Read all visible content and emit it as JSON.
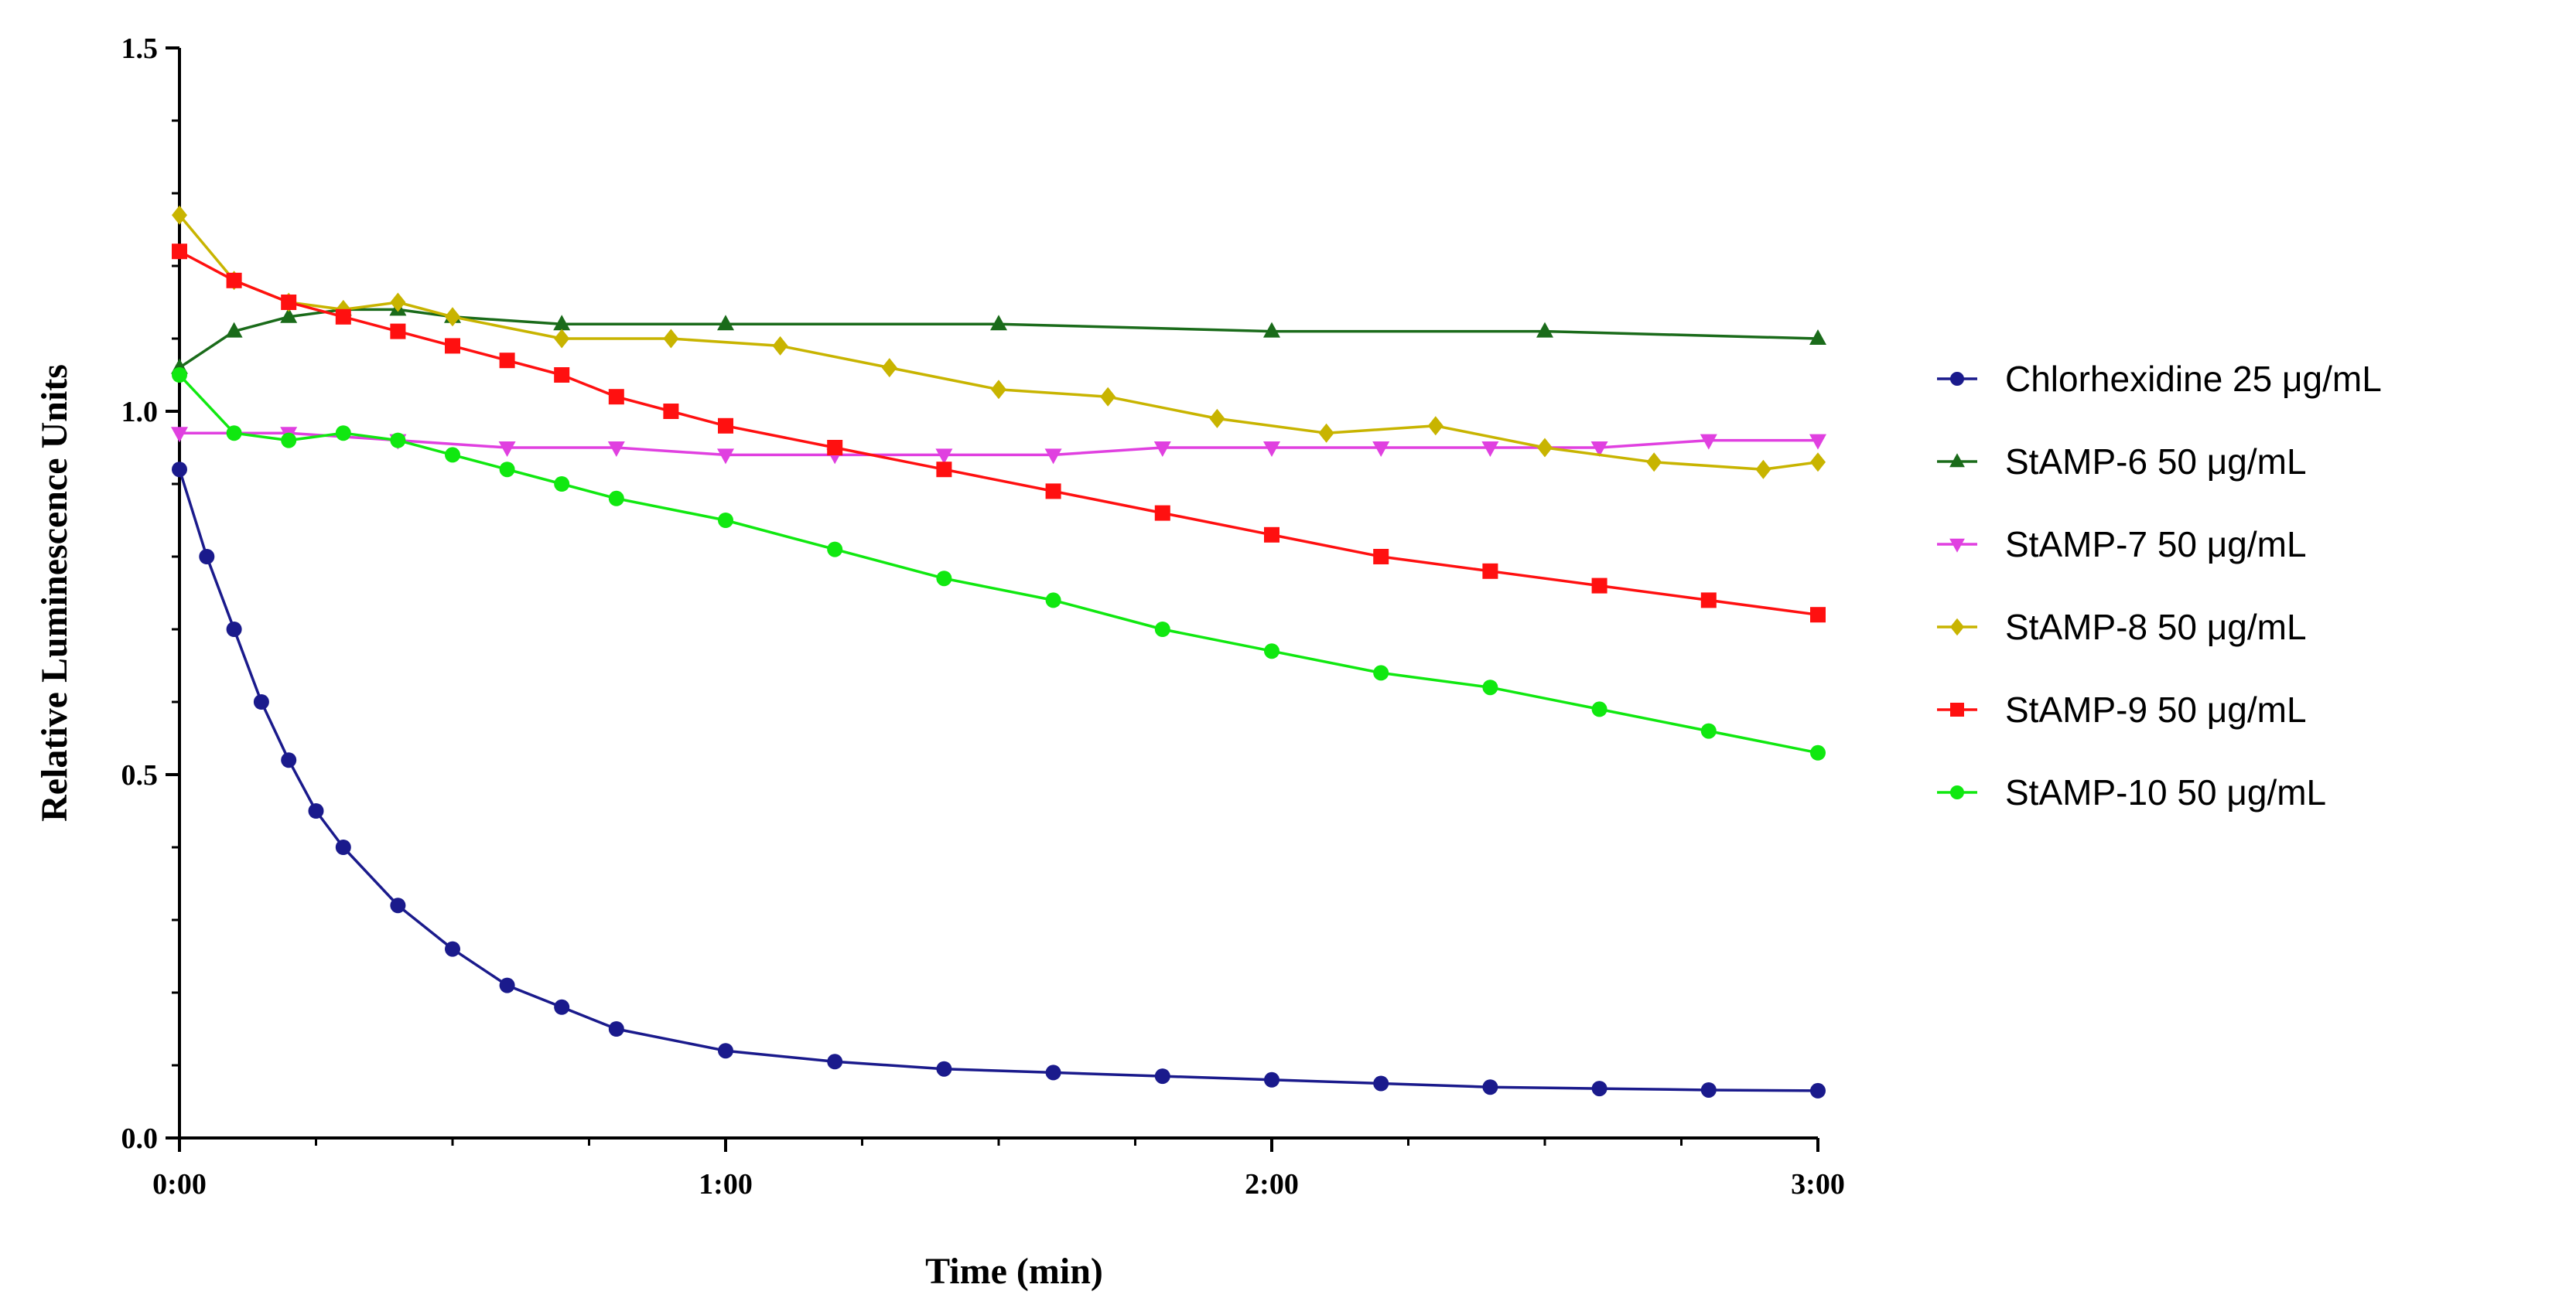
{
  "chart_data": {
    "type": "scatter",
    "title": "",
    "xlabel": "Time (min)",
    "ylabel": "Relative Luminescence Units",
    "xlim": [
      0,
      3
    ],
    "ylim": [
      0,
      1.5
    ],
    "x_ticks": [
      0,
      1,
      2,
      3
    ],
    "x_tick_labels": [
      "0:00",
      "1:00",
      "2:00",
      "3:00"
    ],
    "y_ticks": [
      0,
      0.5,
      1.0,
      1.5
    ],
    "y_tick_labels": [
      "0.0",
      "0.5",
      "1.0",
      "1.5"
    ],
    "grid": false,
    "legend_position": "right",
    "series": [
      {
        "name": "Chlorhexidine 25 μg/mL",
        "color": "#1a1a8c",
        "marker": "circle",
        "x": [
          0,
          0.05,
          0.1,
          0.15,
          0.2,
          0.25,
          0.3,
          0.4,
          0.5,
          0.6,
          0.7,
          0.8,
          1.0,
          1.2,
          1.4,
          1.6,
          1.8,
          2.0,
          2.2,
          2.4,
          2.6,
          2.8,
          3.0
        ],
        "y": [
          0.92,
          0.8,
          0.7,
          0.6,
          0.52,
          0.45,
          0.4,
          0.32,
          0.26,
          0.21,
          0.18,
          0.15,
          0.12,
          0.105,
          0.095,
          0.09,
          0.085,
          0.08,
          0.075,
          0.07,
          0.068,
          0.066,
          0.065
        ]
      },
      {
        "name": "StAMP-6 50 μg/mL",
        "color": "#1a6b1a",
        "marker": "triangle-up",
        "x": [
          0,
          0.1,
          0.2,
          0.3,
          0.4,
          0.5,
          0.7,
          1.0,
          1.5,
          2.0,
          2.5,
          3.0
        ],
        "y": [
          1.06,
          1.11,
          1.13,
          1.14,
          1.14,
          1.13,
          1.12,
          1.12,
          1.12,
          1.11,
          1.11,
          1.1
        ]
      },
      {
        "name": "StAMP-7 50 μg/mL",
        "color": "#e040e0",
        "marker": "triangle-down",
        "x": [
          0,
          0.2,
          0.4,
          0.6,
          0.8,
          1.0,
          1.2,
          1.4,
          1.6,
          1.8,
          2.0,
          2.2,
          2.4,
          2.6,
          2.8,
          3.0
        ],
        "y": [
          0.97,
          0.97,
          0.96,
          0.95,
          0.95,
          0.94,
          0.94,
          0.94,
          0.94,
          0.95,
          0.95,
          0.95,
          0.95,
          0.95,
          0.96,
          0.96
        ]
      },
      {
        "name": "StAMP-8 50 μg/mL",
        "color": "#c8b400",
        "marker": "diamond",
        "x": [
          0,
          0.1,
          0.2,
          0.3,
          0.4,
          0.5,
          0.7,
          0.9,
          1.1,
          1.3,
          1.5,
          1.7,
          1.9,
          2.1,
          2.3,
          2.5,
          2.7,
          2.9,
          3.0
        ],
        "y": [
          1.27,
          1.18,
          1.15,
          1.14,
          1.15,
          1.13,
          1.1,
          1.1,
          1.09,
          1.06,
          1.03,
          1.02,
          0.99,
          0.97,
          0.98,
          0.95,
          0.93,
          0.92,
          0.93
        ]
      },
      {
        "name": "StAMP-9 50 μg/mL",
        "color": "#ff1010",
        "marker": "square",
        "x": [
          0,
          0.1,
          0.2,
          0.3,
          0.4,
          0.5,
          0.6,
          0.7,
          0.8,
          0.9,
          1.0,
          1.2,
          1.4,
          1.6,
          1.8,
          2.0,
          2.2,
          2.4,
          2.6,
          2.8,
          3.0
        ],
        "y": [
          1.22,
          1.18,
          1.15,
          1.13,
          1.11,
          1.09,
          1.07,
          1.05,
          1.02,
          1.0,
          0.98,
          0.95,
          0.92,
          0.89,
          0.86,
          0.83,
          0.8,
          0.78,
          0.76,
          0.74,
          0.72
        ]
      },
      {
        "name": "StAMP-10 50 μg/mL",
        "color": "#10e810",
        "marker": "circle",
        "x": [
          0,
          0.1,
          0.2,
          0.3,
          0.4,
          0.5,
          0.6,
          0.7,
          0.8,
          1.0,
          1.2,
          1.4,
          1.6,
          1.8,
          2.0,
          2.2,
          2.4,
          2.6,
          2.8,
          3.0
        ],
        "y": [
          1.05,
          0.97,
          0.96,
          0.97,
          0.96,
          0.94,
          0.92,
          0.9,
          0.88,
          0.85,
          0.81,
          0.77,
          0.74,
          0.7,
          0.67,
          0.64,
          0.62,
          0.59,
          0.56,
          0.53
        ]
      }
    ]
  }
}
